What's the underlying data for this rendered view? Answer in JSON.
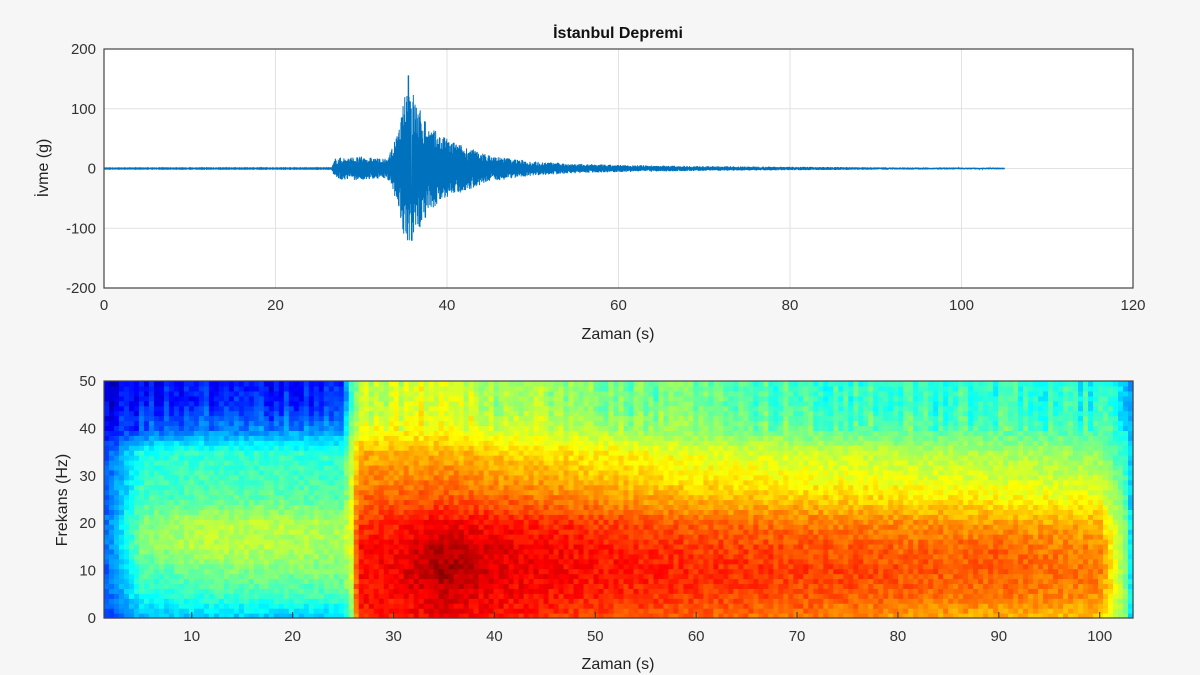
{
  "chart_data": [
    {
      "type": "line",
      "title": "İstanbul Depremi",
      "xlabel": "Zaman (s)",
      "ylabel": "İvme (g)",
      "xlim": [
        0,
        120
      ],
      "ylim": [
        -200,
        200
      ],
      "xticks": [
        0,
        20,
        40,
        60,
        80,
        100,
        120
      ],
      "yticks": [
        200,
        100,
        0,
        -100,
        -200
      ],
      "grid": true,
      "line_color": "#0072bd",
      "signal_end": 105,
      "peak_max": 155,
      "peak_min": -120,
      "envelope": [
        [
          0,
          0.5
        ],
        [
          26.5,
          0.6
        ],
        [
          27,
          18
        ],
        [
          30,
          20
        ],
        [
          33,
          16
        ],
        [
          34.3,
          60
        ],
        [
          35.5,
          155
        ],
        [
          36.5,
          110
        ],
        [
          38,
          70
        ],
        [
          40,
          50
        ],
        [
          42,
          38
        ],
        [
          45,
          22
        ],
        [
          50,
          12
        ],
        [
          55,
          8
        ],
        [
          60,
          6
        ],
        [
          70,
          4
        ],
        [
          80,
          3
        ],
        [
          90,
          2
        ],
        [
          105,
          1.5
        ]
      ]
    },
    {
      "type": "heatmap",
      "xlabel": "Zaman (s)",
      "ylabel": "Frekans (Hz)",
      "xlim": [
        1.3,
        103.3
      ],
      "ylim": [
        0,
        50
      ],
      "xticks": [
        10,
        20,
        30,
        40,
        50,
        60,
        70,
        80,
        90,
        100
      ],
      "yticks": [
        50,
        40,
        30,
        20,
        10,
        0
      ],
      "colormap": "jet",
      "grid": false,
      "time_s": [
        1.3,
        5,
        10,
        15,
        20,
        25,
        25.8,
        26.5,
        30,
        35,
        40,
        50,
        60,
        70,
        80,
        90,
        100,
        102.5,
        103.3
      ],
      "freq_hz": [
        0,
        5,
        10,
        15,
        20,
        25,
        30,
        35,
        40,
        45,
        50
      ],
      "intensity": [
        [
          0.18,
          0.2,
          0.2,
          0.22,
          0.22,
          0.2,
          0.2,
          0.18,
          0.12,
          0.1,
          0.08
        ],
        [
          0.3,
          0.4,
          0.45,
          0.5,
          0.5,
          0.44,
          0.42,
          0.4,
          0.2,
          0.14,
          0.12
        ],
        [
          0.32,
          0.42,
          0.48,
          0.55,
          0.55,
          0.46,
          0.44,
          0.42,
          0.24,
          0.16,
          0.14
        ],
        [
          0.32,
          0.44,
          0.5,
          0.56,
          0.56,
          0.47,
          0.44,
          0.42,
          0.24,
          0.16,
          0.14
        ],
        [
          0.32,
          0.44,
          0.5,
          0.55,
          0.55,
          0.47,
          0.44,
          0.42,
          0.26,
          0.16,
          0.12
        ],
        [
          0.32,
          0.44,
          0.5,
          0.54,
          0.54,
          0.46,
          0.43,
          0.42,
          0.26,
          0.18,
          0.16
        ],
        [
          0.5,
          0.55,
          0.58,
          0.6,
          0.6,
          0.58,
          0.58,
          0.56,
          0.5,
          0.45,
          0.42
        ],
        [
          0.84,
          0.86,
          0.86,
          0.86,
          0.82,
          0.78,
          0.74,
          0.7,
          0.6,
          0.56,
          0.56
        ],
        [
          0.85,
          0.87,
          0.88,
          0.88,
          0.84,
          0.79,
          0.74,
          0.7,
          0.62,
          0.58,
          0.58
        ],
        [
          0.88,
          0.92,
          0.97,
          0.95,
          0.88,
          0.8,
          0.75,
          0.7,
          0.62,
          0.6,
          0.6
        ],
        [
          0.86,
          0.88,
          0.9,
          0.9,
          0.86,
          0.78,
          0.72,
          0.68,
          0.58,
          0.54,
          0.54
        ],
        [
          0.8,
          0.84,
          0.86,
          0.85,
          0.82,
          0.74,
          0.68,
          0.64,
          0.54,
          0.5,
          0.5
        ],
        [
          0.78,
          0.82,
          0.84,
          0.82,
          0.78,
          0.7,
          0.64,
          0.6,
          0.5,
          0.46,
          0.46
        ],
        [
          0.76,
          0.8,
          0.82,
          0.8,
          0.76,
          0.68,
          0.62,
          0.58,
          0.48,
          0.44,
          0.44
        ],
        [
          0.72,
          0.78,
          0.8,
          0.78,
          0.74,
          0.66,
          0.6,
          0.56,
          0.46,
          0.42,
          0.42
        ],
        [
          0.7,
          0.76,
          0.78,
          0.78,
          0.72,
          0.64,
          0.58,
          0.54,
          0.46,
          0.42,
          0.42
        ],
        [
          0.68,
          0.74,
          0.76,
          0.74,
          0.7,
          0.62,
          0.56,
          0.52,
          0.44,
          0.4,
          0.4
        ],
        [
          0.5,
          0.52,
          0.52,
          0.52,
          0.5,
          0.46,
          0.44,
          0.42,
          0.38,
          0.36,
          0.36
        ],
        [
          0.28,
          0.3,
          0.3,
          0.3,
          0.3,
          0.28,
          0.28,
          0.28,
          0.26,
          0.24,
          0.24
        ]
      ]
    }
  ]
}
